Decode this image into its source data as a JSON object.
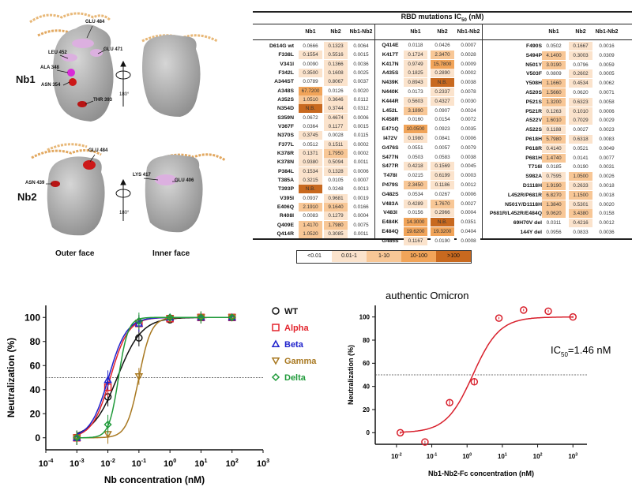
{
  "structures": {
    "nb1_label": "Nb1",
    "nb2_label": "Nb2",
    "outer_face": "Outer face",
    "inner_face": "Inner face",
    "rotation": "180°",
    "nb1_residues": [
      "GLU 484",
      "GLU 471",
      "LEU 452",
      "ALA 348",
      "ASN 354",
      "THR 393"
    ],
    "nb2_residues": [
      "GLU 484",
      "ASN 439",
      "LYS 417",
      "GLU 406"
    ]
  },
  "table": {
    "title": "RBD mutations IC",
    "title_sub": "50",
    "title_unit": " (nM)",
    "columns": [
      "Nb1",
      "Nb2",
      "Nb1-Nb2"
    ],
    "shade_colors": {
      "lt0.01": "#ffffff",
      "0.01-1": "#fbe3cc",
      "1-10": "#f8c796",
      "10-100": "#f1a459",
      "gt100": "#c8691f"
    },
    "legend": [
      "<0.01",
      "0.01-1",
      "1-10",
      "10-100",
      ">100"
    ],
    "groups": [
      {
        "rows": [
          [
            "D614G wt",
            "0.0666",
            "0.1323",
            "0.0064"
          ],
          [
            "F338L",
            "0.1554",
            "0.5516",
            "0.0015"
          ],
          [
            "V341I",
            "0.0090",
            "0.1366",
            "0.0036"
          ],
          [
            "F342L",
            "0.3500",
            "0.1608",
            "0.0025"
          ],
          [
            "A344ST",
            "0.0789",
            "0.8067",
            "0.0037"
          ],
          [
            "A348S",
            "67.7200",
            "0.0126",
            "0.0020"
          ],
          [
            "A352S",
            "1.0510",
            "0.3646",
            "0.0112"
          ],
          [
            "N354D",
            "N.B.",
            "0.3744",
            "0.0312"
          ],
          [
            "S359N",
            "0.0672",
            "0.4674",
            "0.0006"
          ],
          [
            "V367F",
            "0.0364",
            "0.1177",
            "0.0015"
          ],
          [
            "N370S",
            "0.3745",
            "0.0028",
            "0.0115"
          ],
          [
            "F377L",
            "0.0512",
            "0.1511",
            "0.0002"
          ],
          [
            "K378R",
            "0.1371",
            "1.7950",
            "0.0002"
          ],
          [
            "K378N",
            "0.9380",
            "0.5094",
            "0.0011"
          ],
          [
            "P384L",
            "0.1534",
            "0.1328",
            "0.0006"
          ],
          [
            "T385A",
            "0.3215",
            "0.0105",
            "0.0007"
          ],
          [
            "T393P",
            "N.B.",
            "0.0248",
            "0.0013"
          ],
          [
            "V395I",
            "0.0937",
            "0.9681",
            "0.0019"
          ],
          [
            "E406Q",
            "2.1910",
            "9.1640",
            "0.0166"
          ],
          [
            "R408I",
            "0.0083",
            "0.1279",
            "0.0004"
          ],
          [
            "Q409E",
            "1.4170",
            "1.7980",
            "0.0075"
          ],
          [
            "Q414R",
            "1.0520",
            "0.3085",
            "0.0011"
          ]
        ]
      },
      {
        "rows": [
          [
            "Q414E",
            "0.0118",
            "0.0426",
            "0.0007"
          ],
          [
            "K417T",
            "0.1724",
            "2.3470",
            "0.0028"
          ],
          [
            "K417N",
            "0.9749",
            "15.7800",
            "0.0009"
          ],
          [
            "A435S",
            "0.1825",
            "0.2890",
            "0.0002"
          ],
          [
            "N439K",
            "0.8943",
            "N.B.",
            "0.0038"
          ],
          [
            "N440K",
            "0.0173",
            "0.2337",
            "0.0078"
          ],
          [
            "K444R",
            "0.5603",
            "0.4327",
            "0.0030"
          ],
          [
            "L452L",
            "3.1890",
            "0.0907",
            "0.0024"
          ],
          [
            "K458R",
            "0.0160",
            "0.0154",
            "0.0072"
          ],
          [
            "E471Q",
            "10.0500",
            "0.0923",
            "0.0035"
          ],
          [
            "I472V",
            "0.1980",
            "0.0841",
            "0.0006"
          ],
          [
            "G476S",
            "0.0551",
            "0.0057",
            "0.0079"
          ],
          [
            "S477N",
            "0.0503",
            "0.0583",
            "0.0038"
          ],
          [
            "S477R",
            "0.4218",
            "0.1569",
            "0.0045"
          ],
          [
            "T478I",
            "0.0215",
            "0.6199",
            "0.0003"
          ],
          [
            "P479S",
            "2.3450",
            "0.1186",
            "0.0012"
          ],
          [
            "G482S",
            "0.0534",
            "0.0267",
            "0.0006"
          ],
          [
            "V483A",
            "0.4289",
            "1.7670",
            "0.0027"
          ],
          [
            "V483I",
            "0.0156",
            "0.2966",
            "0.0004"
          ],
          [
            "E484K",
            "14.3000",
            "N.B.",
            "0.0351"
          ],
          [
            "E484Q",
            "19.6200",
            "19.3200",
            "0.0404"
          ],
          [
            "G485S",
            "0.1167",
            "0.0190",
            "0.0008"
          ]
        ]
      },
      {
        "rows": [
          [
            "F490S",
            "0.0502",
            "0.1667",
            "0.0016"
          ],
          [
            "S494P",
            "4.1400",
            "0.3003",
            "0.0309"
          ],
          [
            "N501Y",
            "3.0190",
            "0.0796",
            "0.0059"
          ],
          [
            "V503F",
            "0.0809",
            "0.2602",
            "0.0005"
          ],
          [
            "Y508H",
            "1.1660",
            "0.4534",
            "0.0062"
          ],
          [
            "A520S",
            "1.5660",
            "0.0620",
            "0.0071"
          ],
          [
            "P521S",
            "1.3200",
            "0.6323",
            "0.0058"
          ],
          [
            "P521R",
            "0.1263",
            "0.1010",
            "0.0006"
          ],
          [
            "A522V",
            "1.6010",
            "0.7029",
            "0.0029"
          ],
          [
            "A522S",
            "0.1188",
            "0.0027",
            "0.0023"
          ],
          [
            "P618H",
            "5.7980",
            "0.6318",
            "0.0083"
          ],
          [
            "P618R",
            "0.4140",
            "0.0521",
            "0.0049"
          ],
          [
            "P681H",
            "1.4740",
            "0.0141",
            "0.0077"
          ],
          [
            "T716I",
            "0.0185",
            "0.0190",
            "0.0031"
          ],
          [
            "S982A",
            "0.7595",
            "1.0500",
            "0.0026"
          ],
          [
            "D1118H",
            "1.9190",
            "0.2633",
            "0.0018"
          ],
          [
            "L452R/P681R",
            "6.8270",
            "1.1500",
            "0.0018"
          ],
          [
            "N501Y/D1118H",
            "1.3840",
            "0.5301",
            "0.0020"
          ],
          [
            "P681R/L452R/E484Q",
            "9.0620",
            "3.4380",
            "0.0158"
          ],
          [
            "69H70V del",
            "0.0311",
            "0.4216",
            "0.0012"
          ],
          [
            "144Y del",
            "0.0956",
            "0.0833",
            "0.0036"
          ]
        ]
      }
    ]
  },
  "chart_data": [
    {
      "type": "line",
      "xlabel": "Nb concentration (nM)",
      "ylabel": "Neutralization (%)",
      "xscale": "log",
      "xlim": [
        0.0001,
        1000
      ],
      "ylim": [
        -10,
        110
      ],
      "xticks": [
        "10^-4",
        "10^-3",
        "10^-2",
        "10^-1",
        "10^0",
        "10^1",
        "10^2",
        "10^3"
      ],
      "yticks": [
        0,
        20,
        40,
        60,
        80,
        100
      ],
      "reference_line": 50,
      "legend_position": "right",
      "x": [
        0.001,
        0.01,
        0.1,
        1,
        10,
        100
      ],
      "series": [
        {
          "name": "WT",
          "color": "#111111",
          "marker": "circle",
          "values": [
            0,
            34,
            83,
            98,
            100,
            100
          ]
        },
        {
          "name": "Alpha",
          "color": "#e3232c",
          "marker": "square",
          "values": [
            0,
            42,
            95,
            99,
            100,
            100
          ]
        },
        {
          "name": "Beta",
          "color": "#1f22cc",
          "marker": "triangle-up",
          "values": [
            0,
            48,
            95,
            100,
            100,
            100
          ]
        },
        {
          "name": "Gamma",
          "color": "#a87820",
          "marker": "triangle-down",
          "values": [
            0,
            3,
            51,
            99,
            100,
            100
          ]
        },
        {
          "name": "Delta",
          "color": "#1f9a3a",
          "marker": "diamond",
          "values": [
            0,
            11,
            97,
            100,
            100,
            100
          ]
        }
      ]
    },
    {
      "type": "line",
      "title": "authentic Omicron",
      "xlabel": "Nb1-Nb2-Fc concentration (nM)",
      "ylabel": "Neutralization (%)",
      "xscale": "log",
      "xlim": [
        0.0025,
        2500
      ],
      "ylim": [
        -10,
        110
      ],
      "xticks": [
        "10^-2",
        "10^-1",
        "10^0",
        "10^1",
        "10^2",
        "10^3"
      ],
      "yticks": [
        0,
        20,
        40,
        60,
        80,
        100
      ],
      "reference_line": 50,
      "annotation": {
        "prefix": "IC",
        "sub": "50",
        "text": "=1.46 nM"
      },
      "series": [
        {
          "color": "#d8202c",
          "marker": "circle",
          "x": [
            0.0128,
            0.064,
            0.32,
            1.6,
            8,
            40,
            200,
            1000
          ],
          "values": [
            0,
            -8,
            26,
            44,
            99,
            106,
            105,
            100
          ]
        }
      ]
    }
  ]
}
